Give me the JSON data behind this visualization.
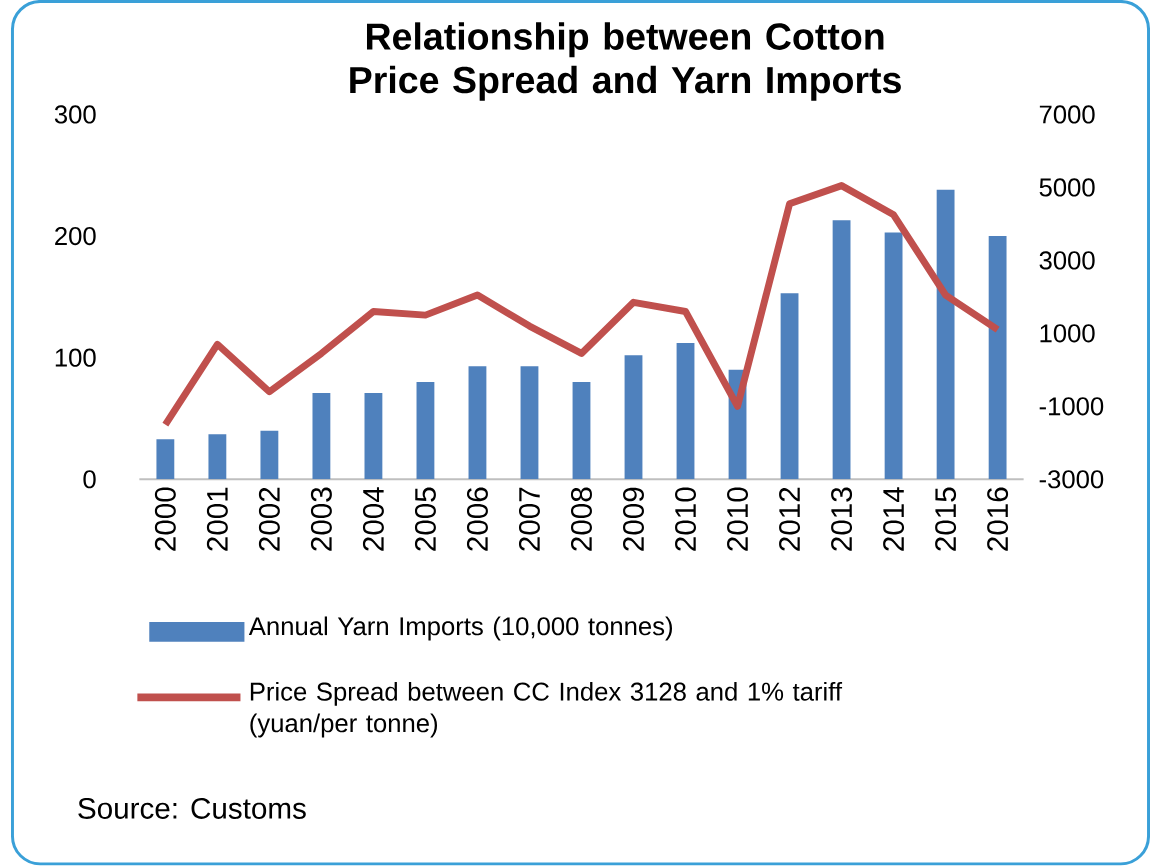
{
  "chart_data": {
    "type": "bar",
    "title": "Relationship between Cotton Price Spread and Yarn Imports",
    "categories": [
      "2000",
      "2001",
      "2002",
      "2003",
      "2004",
      "2005",
      "2006",
      "2007",
      "2008",
      "2009",
      "2010",
      "2010",
      "2012",
      "2013",
      "2014",
      "2015",
      "2016"
    ],
    "series": [
      {
        "name": "Annual Yarn Imports (10,000 tonnes)",
        "color": "#4f81bd",
        "values": [
          33,
          37,
          40,
          71,
          71,
          80,
          93,
          93,
          80,
          102,
          112,
          90,
          153,
          213,
          203,
          238,
          200
        ]
      },
      {
        "name": "Price Spread between CC Index 3128 and 1% tariff (yuan/per tonne)",
        "type": "line",
        "axis": "y2",
        "color": "#c0504d",
        "values": [
          -1500,
          700,
          -600,
          450,
          1600,
          1500,
          2050,
          1200,
          450,
          1850,
          1600,
          -1000,
          4550,
          5050,
          4250,
          2050,
          1100
        ]
      }
    ],
    "ylim": [
      0,
      300
    ],
    "yticks": [
      0,
      100,
      200,
      300
    ],
    "y2lim": [
      -3000,
      7000
    ],
    "y2ticks": [
      -3000,
      -1000,
      1000,
      3000,
      5000,
      7000
    ],
    "legend": "bottom",
    "grid": false,
    "annotations": [
      "Source: Customs"
    ]
  }
}
